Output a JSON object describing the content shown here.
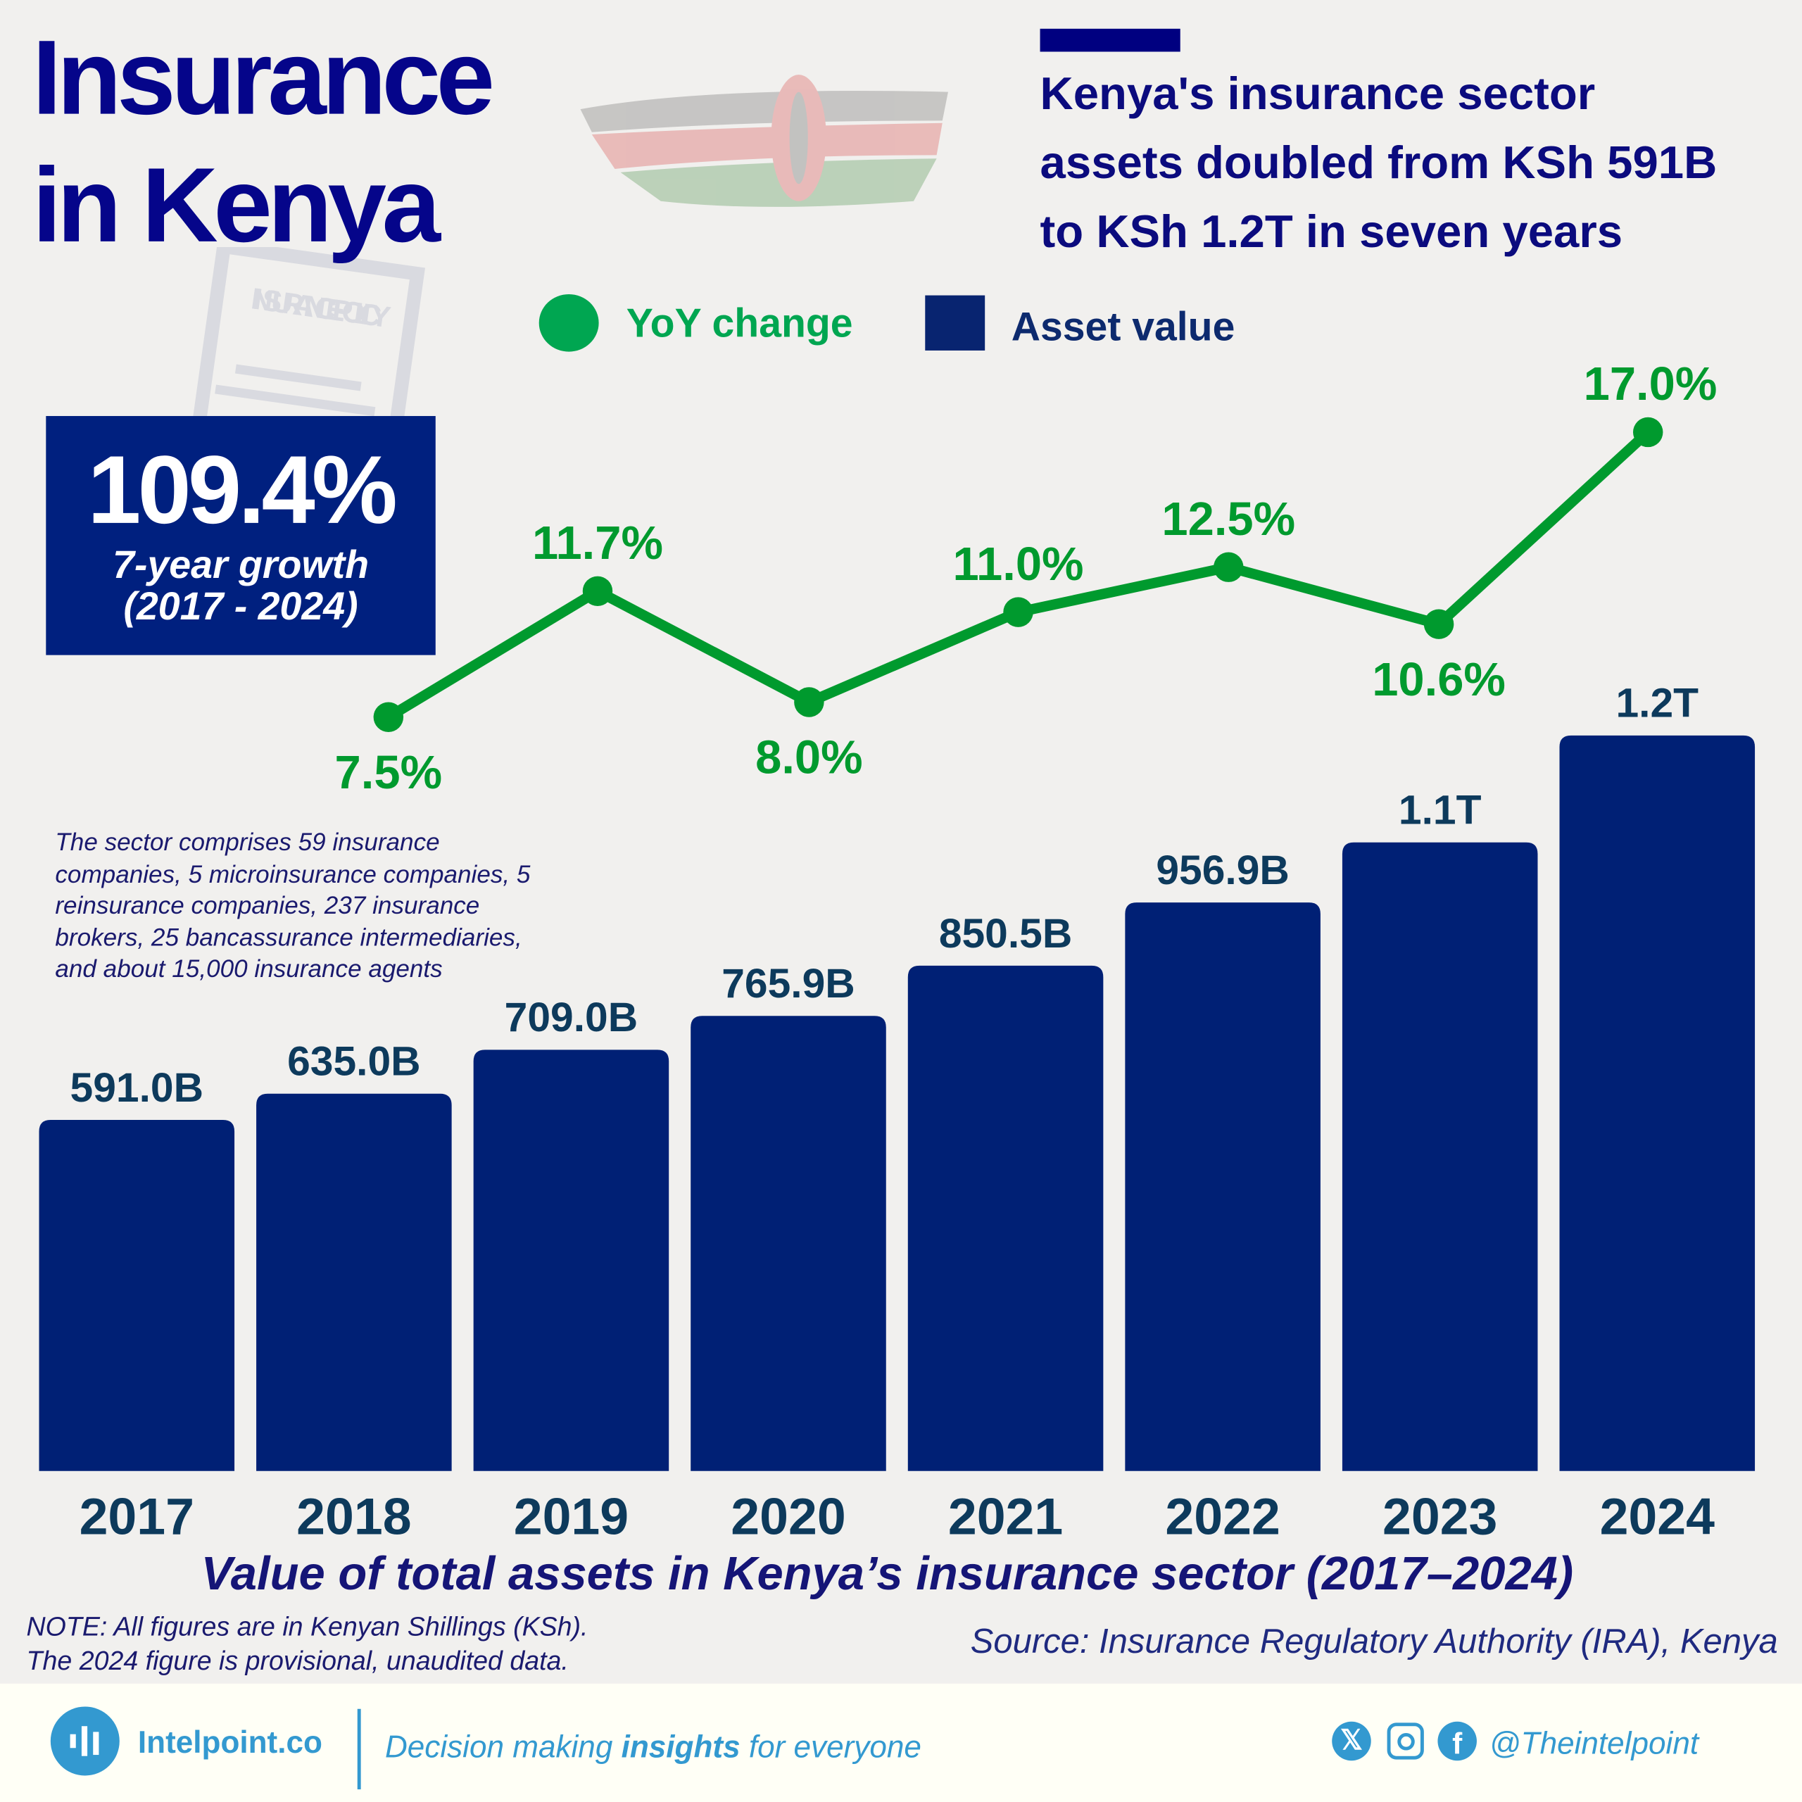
{
  "title": {
    "line1": "Insurance",
    "line2": "in Kenya"
  },
  "watermark": {
    "policy_text": "INSURANCE POLICY"
  },
  "headline": {
    "line1": "Kenya's insurance sector",
    "line2": "assets doubled from KSh 591B",
    "line3": "to KSh 1.2T in seven years"
  },
  "legend": {
    "yoy": "YoY change",
    "asset": "Asset value"
  },
  "highlight": {
    "value": "109.4%",
    "label1": "7-year growth",
    "label2": "(2017 - 2024)"
  },
  "annotation": [
    "The sector comprises 59 insurance",
    "companies, 5 microinsurance companies, 5",
    "reinsurance companies, 237 insurance",
    "brokers, 25 bancassurance intermediaries,",
    "and about 15,000 insurance agents"
  ],
  "colors": {
    "bar": "#002075",
    "line": "#009a2e",
    "legend_green": "#00a651",
    "title": "#05058a",
    "value_label": "#0d3a5c"
  },
  "chart_data": {
    "type": "bar+line",
    "title": "Value of total assets in Kenya’s insurance sector (2017–2024)",
    "categories": [
      "2017",
      "2018",
      "2019",
      "2020",
      "2021",
      "2022",
      "2023",
      "2024"
    ],
    "series": [
      {
        "name": "Asset value",
        "type": "bar",
        "unit": "KSh billion",
        "values": [
          591.0,
          635.0,
          709.0,
          765.9,
          850.5,
          956.9,
          1058,
          1238
        ],
        "labels": [
          "591.0B",
          "635.0B",
          "709.0B",
          "765.9B",
          "850.5B",
          "956.9B",
          "1.1T",
          "1.2T"
        ]
      },
      {
        "name": "YoY change",
        "type": "line",
        "unit": "%",
        "values": [
          7.5,
          11.7,
          8.0,
          11.0,
          12.5,
          10.6,
          17.0
        ],
        "x": [
          "2018",
          "2019",
          "2020",
          "2021",
          "2022",
          "2023",
          "2024"
        ],
        "labels": [
          "7.5%",
          "11.7%",
          "8.0%",
          "11.0%",
          "12.5%",
          "10.6%",
          "17.0%"
        ]
      }
    ],
    "grid": false,
    "legend_position": "top"
  },
  "notes": {
    "line1": "NOTE: All figures are in Kenyan Shillings (KSh).",
    "line2": "The 2024 figure is provisional, unaudited data."
  },
  "source": "Source: Insurance Regulatory Authority (IRA), Kenya",
  "footer": {
    "brand": "Intelpoint.co",
    "tagline_pre": "Decision making ",
    "tagline_bold": "insights",
    "tagline_post": " for everyone",
    "handle": "@Theintelpoint"
  }
}
